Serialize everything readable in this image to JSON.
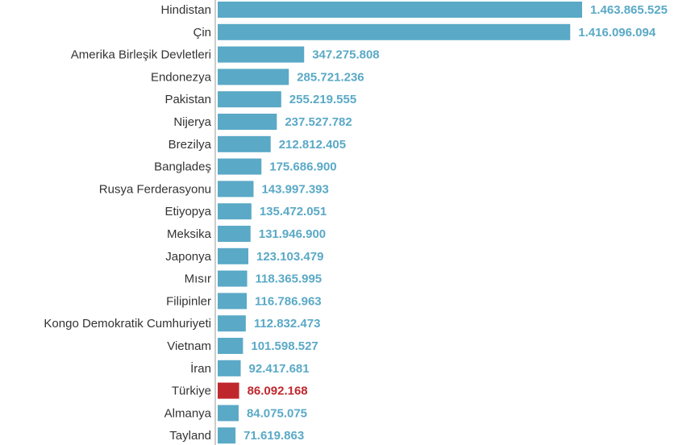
{
  "chart_data": {
    "type": "bar",
    "orientation": "horizontal",
    "categories": [
      "Hindistan",
      "Çin",
      "Amerika Birleşik Devletleri",
      "Endonezya",
      "Pakistan",
      "Nijerya",
      "Brezilya",
      "Bangladeş",
      "Rusya Ferderasyonu",
      "Etiyopya",
      "Meksika",
      "Japonya",
      "Mısır",
      "Filipinler",
      "Kongo Demokratik Cumhuriyeti",
      "Vietnam",
      "İran",
      "Türkiye",
      "Almanya",
      "Tayland"
    ],
    "values": [
      1463865525,
      1416096094,
      347275808,
      285721236,
      255219555,
      237527782,
      212812405,
      175686900,
      143997393,
      135472051,
      131946900,
      123103479,
      118365995,
      116786963,
      112832473,
      101598527,
      92417681,
      86092168,
      84075075,
      71619863
    ],
    "value_labels": [
      "1.463.865.525",
      "1.416.096.094",
      "347.275.808",
      "285.721.236",
      "255.219.555",
      "237.527.782",
      "212.812.405",
      "175.686.900",
      "143.997.393",
      "135.472.051",
      "131.946.900",
      "123.103.479",
      "118.365.995",
      "116.786.963",
      "112.832.473",
      "101.598.527",
      "92.417.681",
      "86.092.168",
      "84.075.075",
      "71.619.863"
    ],
    "highlight_category": "Türkiye",
    "xlim": [
      0,
      1463865525
    ],
    "grid": false,
    "legend": "none",
    "title": "",
    "xlabel": "",
    "ylabel": ""
  },
  "colors": {
    "bar": "#5aa9c6",
    "highlight": "#c0272d",
    "value_text": "#5aa9c6",
    "highlight_text": "#c0272d",
    "category_text": "#333333",
    "axis_line": "#999999"
  }
}
